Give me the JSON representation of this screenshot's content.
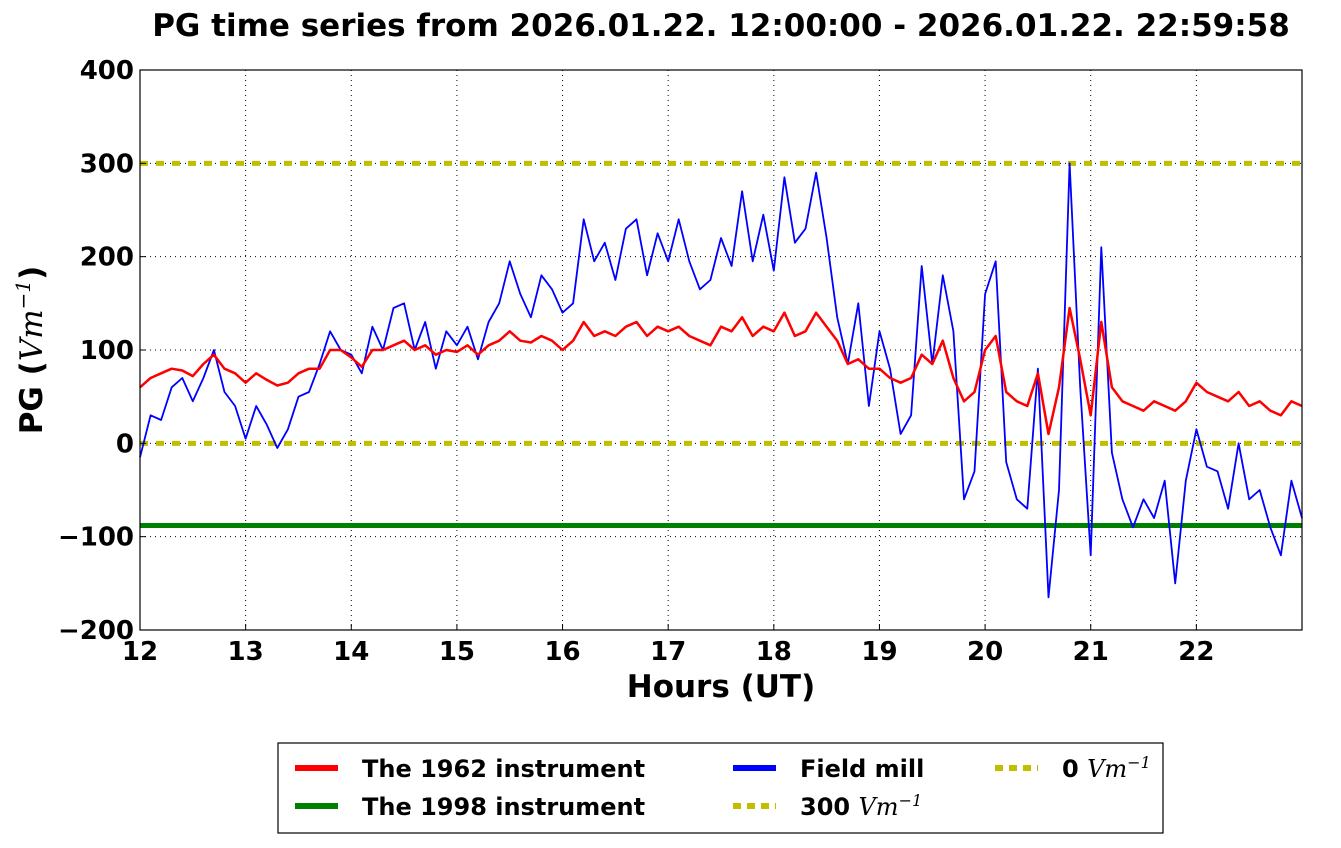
{
  "chart_data": {
    "type": "line",
    "title": "PG time series from 2026.01.22. 12:00:00 - 2026.01.22. 22:59:58",
    "xlabel": "Hours (UT)",
    "ylabel": "PG (",
    "ylabel_unit": "Vm",
    "ylabel_exp": "−1",
    "ylabel_close": ")",
    "xlim": [
      12,
      23
    ],
    "ylim": [
      -200,
      400
    ],
    "xticks": [
      12,
      13,
      14,
      15,
      16,
      17,
      18,
      19,
      20,
      21,
      22
    ],
    "xtick_labels": [
      "12",
      "13",
      "14",
      "15",
      "16",
      "17",
      "18",
      "19",
      "20",
      "21",
      "22"
    ],
    "yticks": [
      -200,
      -100,
      0,
      100,
      200,
      300,
      400
    ],
    "ytick_labels": [
      "−200",
      "−100",
      "0",
      "100",
      "200",
      "300",
      "400"
    ],
    "grid": true,
    "legend_position": "bottom",
    "x": [
      12.0,
      12.1,
      12.2,
      12.3,
      12.4,
      12.5,
      12.6,
      12.7,
      12.8,
      12.9,
      13.0,
      13.1,
      13.2,
      13.3,
      13.4,
      13.5,
      13.6,
      13.7,
      13.8,
      13.9,
      14.0,
      14.1,
      14.2,
      14.3,
      14.4,
      14.5,
      14.6,
      14.7,
      14.8,
      14.9,
      15.0,
      15.1,
      15.2,
      15.3,
      15.4,
      15.5,
      15.6,
      15.7,
      15.8,
      15.9,
      16.0,
      16.1,
      16.2,
      16.3,
      16.4,
      16.5,
      16.6,
      16.7,
      16.8,
      16.9,
      17.0,
      17.1,
      17.2,
      17.3,
      17.4,
      17.5,
      17.6,
      17.7,
      17.8,
      17.9,
      18.0,
      18.1,
      18.2,
      18.3,
      18.4,
      18.5,
      18.6,
      18.7,
      18.8,
      18.9,
      19.0,
      19.1,
      19.2,
      19.3,
      19.4,
      19.5,
      19.6,
      19.7,
      19.8,
      19.9,
      20.0,
      20.1,
      20.2,
      20.3,
      20.4,
      20.5,
      20.6,
      20.7,
      20.8,
      20.9,
      21.0,
      21.1,
      21.2,
      21.3,
      21.4,
      21.5,
      21.6,
      21.7,
      21.8,
      21.9,
      22.0,
      22.1,
      22.2,
      22.3,
      22.4,
      22.5,
      22.6,
      22.7,
      22.8,
      22.9,
      23.0
    ],
    "series": [
      {
        "name": "The 1962 instrument",
        "color": "#ff0000",
        "style": "solid",
        "values": [
          60,
          70,
          75,
          80,
          78,
          72,
          85,
          95,
          80,
          75,
          65,
          75,
          68,
          62,
          65,
          75,
          80,
          80,
          100,
          100,
          92,
          82,
          100,
          100,
          105,
          110,
          100,
          105,
          95,
          100,
          98,
          105,
          95,
          105,
          110,
          120,
          110,
          108,
          115,
          110,
          100,
          110,
          130,
          115,
          120,
          115,
          125,
          130,
          115,
          125,
          120,
          125,
          115,
          110,
          105,
          125,
          120,
          135,
          115,
          125,
          120,
          140,
          115,
          120,
          140,
          125,
          110,
          85,
          90,
          80,
          80,
          70,
          65,
          70,
          95,
          85,
          110,
          70,
          45,
          55,
          100,
          115,
          55,
          45,
          40,
          75,
          10,
          60,
          145,
          90,
          30,
          130,
          60,
          45,
          40,
          35,
          45,
          40,
          35,
          45,
          65,
          55,
          50,
          45,
          55,
          40,
          45,
          35,
          30,
          45,
          40
        ]
      },
      {
        "name": "Field mill",
        "color": "#0000ff",
        "style": "solid",
        "values": [
          -15,
          30,
          25,
          60,
          70,
          45,
          70,
          100,
          55,
          40,
          5,
          40,
          20,
          -5,
          15,
          50,
          55,
          85,
          120,
          100,
          95,
          75,
          125,
          100,
          145,
          150,
          100,
          130,
          80,
          120,
          105,
          125,
          90,
          130,
          150,
          195,
          160,
          135,
          180,
          165,
          140,
          150,
          240,
          195,
          215,
          175,
          230,
          240,
          180,
          225,
          195,
          240,
          195,
          165,
          175,
          220,
          190,
          270,
          195,
          245,
          185,
          285,
          215,
          230,
          290,
          220,
          135,
          85,
          150,
          40,
          120,
          80,
          10,
          30,
          190,
          85,
          180,
          120,
          -60,
          -30,
          160,
          195,
          -20,
          -60,
          -70,
          80,
          -165,
          -50,
          300,
          60,
          -120,
          210,
          -10,
          -60,
          -90,
          -60,
          -80,
          -40,
          -150,
          -40,
          15,
          -25,
          -30,
          -70,
          0,
          -60,
          -50,
          -90,
          -120,
          -40,
          -80
        ]
      },
      {
        "name": "The 1998 instrument",
        "color": "#008000",
        "style": "solid",
        "constant": -88
      },
      {
        "name": "300",
        "unit": "Vm",
        "exp": "−1",
        "color": "#bfbf00",
        "style": "dotted",
        "constant": 300
      },
      {
        "name": "0",
        "unit": "Vm",
        "exp": "−1",
        "color": "#bfbf00",
        "style": "dotted",
        "constant": 0
      }
    ]
  }
}
